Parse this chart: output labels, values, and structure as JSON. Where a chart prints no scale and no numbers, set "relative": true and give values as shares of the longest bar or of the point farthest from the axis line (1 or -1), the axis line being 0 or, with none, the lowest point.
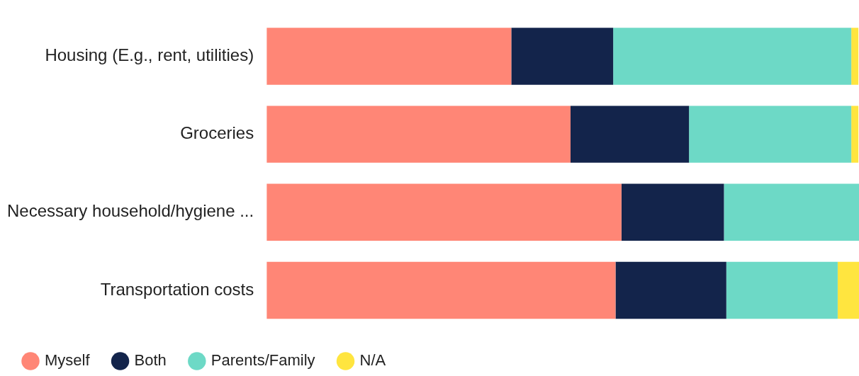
{
  "chart_data": {
    "type": "bar",
    "orientation": "horizontal",
    "stacked": true,
    "relative": true,
    "categories": [
      "Housing (E.g., rent, utilities)",
      "Groceries",
      "Necessary household/hygiene ...",
      "Transportation costs"
    ],
    "series": [
      {
        "name": "Myself",
        "color": "#ff8676",
        "values": [
          0.413,
          0.513,
          0.599,
          0.589
        ]
      },
      {
        "name": "Both",
        "color": "#13244b",
        "values": [
          0.172,
          0.2,
          0.173,
          0.187
        ]
      },
      {
        "name": "Parents/Family",
        "color": "#6dd9c6",
        "values": [
          0.402,
          0.274,
          0.228,
          0.188
        ]
      },
      {
        "name": "N/A",
        "color": "#ffe53f",
        "values": [
          0.012,
          0.012,
          0,
          0.036
        ]
      }
    ],
    "legend": "bottom left"
  }
}
